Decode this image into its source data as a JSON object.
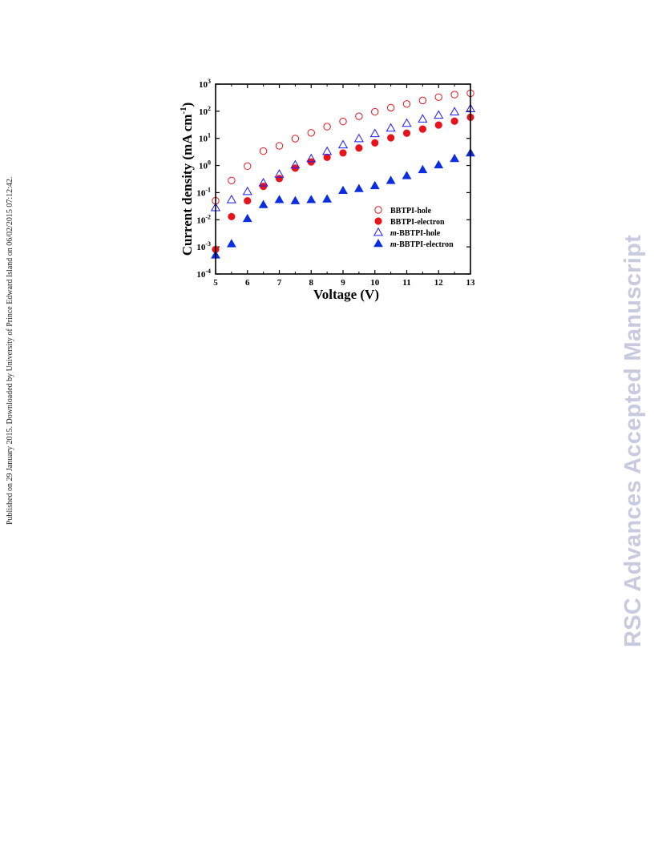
{
  "side_note": "Published on 29 January 2015. Downloaded by University of Prince Edward Island on 06/02/2015 07:12:42.",
  "watermark": "RSC Advances Accepted Manuscript",
  "chart_data": {
    "type": "scatter",
    "title": "",
    "xlabel": "Voltage (V)",
    "ylabel_main": "Current density (mA cm",
    "ylabel_sup": "-1",
    "ylabel_end": ")",
    "y_scale": "log",
    "xlim": [
      5,
      13
    ],
    "ylim": [
      0.0001,
      1000
    ],
    "x_ticks": [
      "5",
      "6",
      "7",
      "8",
      "9",
      "10",
      "11",
      "12",
      "13"
    ],
    "y_ticks": [
      {
        "base": "10",
        "exp": "-4"
      },
      {
        "base": "10",
        "exp": "-3"
      },
      {
        "base": "10",
        "exp": "-2"
      },
      {
        "base": "10",
        "exp": "-1"
      },
      {
        "base": "10",
        "exp": "0"
      },
      {
        "base": "10",
        "exp": "1"
      },
      {
        "base": "10",
        "exp": "2"
      },
      {
        "base": "10",
        "exp": "3"
      }
    ],
    "legend_position": "lower-right",
    "x": [
      5,
      5.5,
      6,
      6.5,
      7,
      7.5,
      8,
      8.5,
      9,
      9.5,
      10,
      10.5,
      11,
      11.5,
      12,
      12.5,
      13
    ],
    "series": [
      {
        "name": "BBTPI-hole",
        "prefix": "",
        "suffix": "BBTPI-hole",
        "marker": "circle-open",
        "color": "#e8141c",
        "values": [
          0.05,
          0.28,
          0.95,
          3.4,
          5.3,
          9.8,
          16,
          27,
          42,
          65,
          95,
          135,
          185,
          250,
          330,
          410,
          460
        ]
      },
      {
        "name": "BBTPI-electron",
        "prefix": "",
        "suffix": "BBTPI-electron",
        "marker": "circle-filled",
        "color": "#e8141c",
        "values": [
          0.0008,
          0.013,
          0.05,
          0.17,
          0.33,
          0.8,
          1.35,
          2.0,
          2.9,
          4.4,
          6.8,
          10.5,
          15.5,
          22,
          31,
          43,
          60
        ]
      },
      {
        "name": "m-BBTPI-hole",
        "prefix": "m",
        "suffix": "-BBTPI-hole",
        "marker": "triangle-open",
        "color": "#1a1aff",
        "values": [
          0.028,
          0.055,
          0.11,
          0.23,
          0.48,
          1.05,
          1.8,
          3.3,
          5.8,
          9.8,
          15,
          24,
          36,
          52,
          72,
          95,
          125
        ]
      },
      {
        "name": "m-BBTPI-electron",
        "prefix": "m",
        "suffix": "-BBTPI-electron",
        "marker": "triangle-filled",
        "color": "#0b2ee0",
        "values": [
          0.0005,
          0.0013,
          0.011,
          0.036,
          0.055,
          0.05,
          0.055,
          0.058,
          0.12,
          0.14,
          0.18,
          0.28,
          0.42,
          0.7,
          1.05,
          1.8,
          2.9
        ]
      }
    ]
  }
}
